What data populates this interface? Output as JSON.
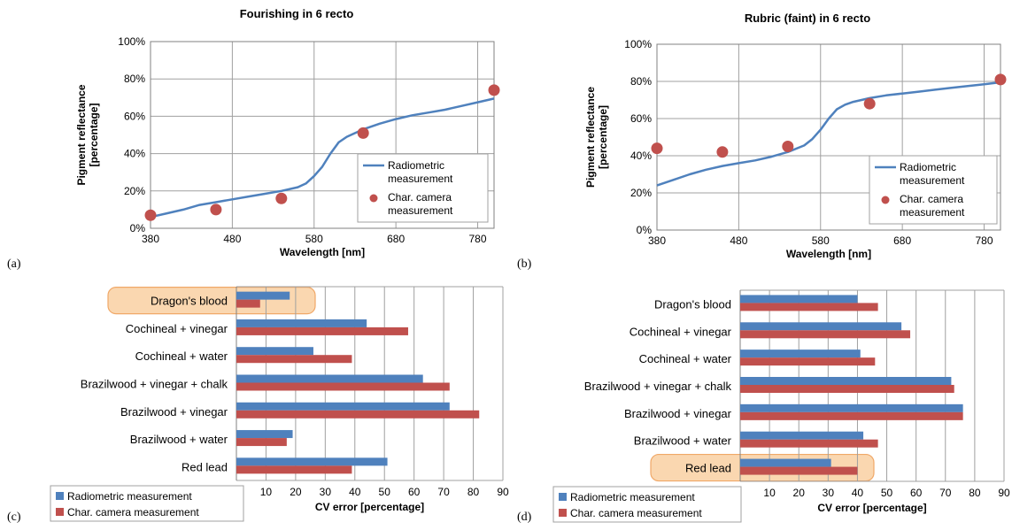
{
  "colors": {
    "radiometric": "#4F81BD",
    "camera": "#C0504D",
    "grid": "#A0A0A0",
    "highlight_fill": "#FAD7B0",
    "highlight_stroke": "#F0A868"
  },
  "panel_labels": [
    "(a)",
    "(b)",
    "(c)",
    "(d)"
  ],
  "chart_data": [
    {
      "type": "line",
      "panel": "(a)",
      "title": "Fourishing in 6 recto",
      "xlabel": "Wavelength [nm]",
      "ylabel_lines": [
        "Pigment reflectance",
        "[percentage]"
      ],
      "xlim": [
        380,
        800
      ],
      "ylim": [
        0,
        100
      ],
      "xticks": [
        380,
        480,
        580,
        680,
        780
      ],
      "yticks": [
        0,
        20,
        40,
        60,
        80,
        100
      ],
      "ytick_labels": [
        "0%",
        "20%",
        "40%",
        "60%",
        "80%",
        "100%"
      ],
      "grid": true,
      "legend_position": "bottom-right",
      "legend": [
        {
          "kind": "line",
          "series": "radiometric",
          "lines": [
            "Radiometric",
            "measurement"
          ]
        },
        {
          "kind": "marker",
          "series": "camera",
          "lines": [
            "Char. camera",
            "measurement"
          ]
        }
      ],
      "series": [
        {
          "name": "Radiometric measurement",
          "kind": "line",
          "x": [
            380,
            400,
            420,
            440,
            460,
            480,
            500,
            520,
            540,
            560,
            570,
            580,
            590,
            600,
            610,
            620,
            630,
            640,
            660,
            680,
            700,
            720,
            740,
            760,
            780,
            800
          ],
          "y": [
            6,
            8,
            10,
            12.5,
            14,
            15.5,
            17,
            18.5,
            20,
            22,
            24,
            28,
            33,
            40,
            46,
            49,
            51,
            53,
            56,
            58.5,
            60.5,
            62,
            63.5,
            65.5,
            67.5,
            69.5
          ]
        },
        {
          "name": "Char. camera measurement",
          "kind": "scatter",
          "x": [
            380,
            460,
            540,
            640,
            800
          ],
          "y": [
            7,
            10,
            16,
            51,
            74
          ]
        }
      ]
    },
    {
      "type": "line",
      "panel": "(b)",
      "title": "Rubric (faint) in 6 recto",
      "xlabel": "Wavelength [nm]",
      "ylabel_lines": [
        "Pigment reflectance",
        "[percentage]"
      ],
      "xlim": [
        380,
        800
      ],
      "ylim": [
        0,
        100
      ],
      "xticks": [
        380,
        480,
        580,
        680,
        780
      ],
      "yticks": [
        0,
        20,
        40,
        60,
        80,
        100
      ],
      "ytick_labels": [
        "0%",
        "20%",
        "40%",
        "60%",
        "80%",
        "100%"
      ],
      "grid": true,
      "legend_position": "bottom-right",
      "legend": [
        {
          "kind": "line",
          "series": "radiometric",
          "lines": [
            "Radiometric",
            "measurement"
          ]
        },
        {
          "kind": "marker",
          "series": "camera",
          "lines": [
            "Char. camera",
            "measurement"
          ]
        }
      ],
      "series": [
        {
          "name": "Radiometric measurement",
          "kind": "line",
          "x": [
            380,
            400,
            420,
            440,
            460,
            480,
            500,
            520,
            540,
            560,
            570,
            580,
            590,
            600,
            610,
            620,
            630,
            640,
            660,
            680,
            700,
            720,
            740,
            760,
            780,
            800
          ],
          "y": [
            24,
            27,
            30,
            32.5,
            34.5,
            36,
            37.5,
            39.5,
            42,
            45.5,
            49,
            54,
            60,
            65,
            67.5,
            69,
            70,
            71,
            72.5,
            73.5,
            74.5,
            75.5,
            76.5,
            77.5,
            78.5,
            79.5
          ]
        },
        {
          "name": "Char. camera measurement",
          "kind": "scatter",
          "x": [
            380,
            460,
            540,
            640,
            800
          ],
          "y": [
            44,
            42,
            45,
            68,
            81
          ]
        }
      ]
    },
    {
      "type": "bar",
      "orientation": "horizontal",
      "panel": "(c)",
      "xlabel": "CV error [percentage]",
      "xlim": [
        0,
        90
      ],
      "xticks": [
        10,
        20,
        30,
        40,
        50,
        60,
        70,
        80,
        90
      ],
      "grid": true,
      "categories": [
        "Dragon's blood",
        "Cochineal + vinegar",
        "Cochineal + water",
        "Brazilwood + vinegar + chalk",
        "Brazilwood + vinegar",
        "Brazilwood + water",
        "Red lead"
      ],
      "highlighted_category": "Dragon's blood",
      "legend_position": "bottom-left",
      "legend": [
        "Radiometric measurement",
        "Char. camera measurement"
      ],
      "series": [
        {
          "name": "Radiometric measurement",
          "values": [
            18,
            44,
            26,
            63,
            72,
            19,
            51
          ]
        },
        {
          "name": "Char. camera measurement",
          "values": [
            8,
            58,
            39,
            72,
            82,
            17,
            39
          ]
        }
      ]
    },
    {
      "type": "bar",
      "orientation": "horizontal",
      "panel": "(d)",
      "xlabel": "CV error [percentage]",
      "xlim": [
        0,
        90
      ],
      "xticks": [
        10,
        20,
        30,
        40,
        50,
        60,
        70,
        80,
        90
      ],
      "grid": true,
      "categories": [
        "Dragon's blood",
        "Cochineal + vinegar",
        "Cochineal + water",
        "Brazilwood + vinegar + chalk",
        "Brazilwood + vinegar",
        "Brazilwood + water",
        "Red lead"
      ],
      "highlighted_category": "Red lead",
      "legend_position": "bottom-left",
      "legend": [
        "Radiometric measurement",
        "Char. camera measurement"
      ],
      "series": [
        {
          "name": "Radiometric measurement",
          "values": [
            40,
            55,
            41,
            72,
            76,
            42,
            31
          ]
        },
        {
          "name": "Char. camera measurement",
          "values": [
            47,
            58,
            46,
            73,
            76,
            47,
            40
          ]
        }
      ]
    }
  ]
}
